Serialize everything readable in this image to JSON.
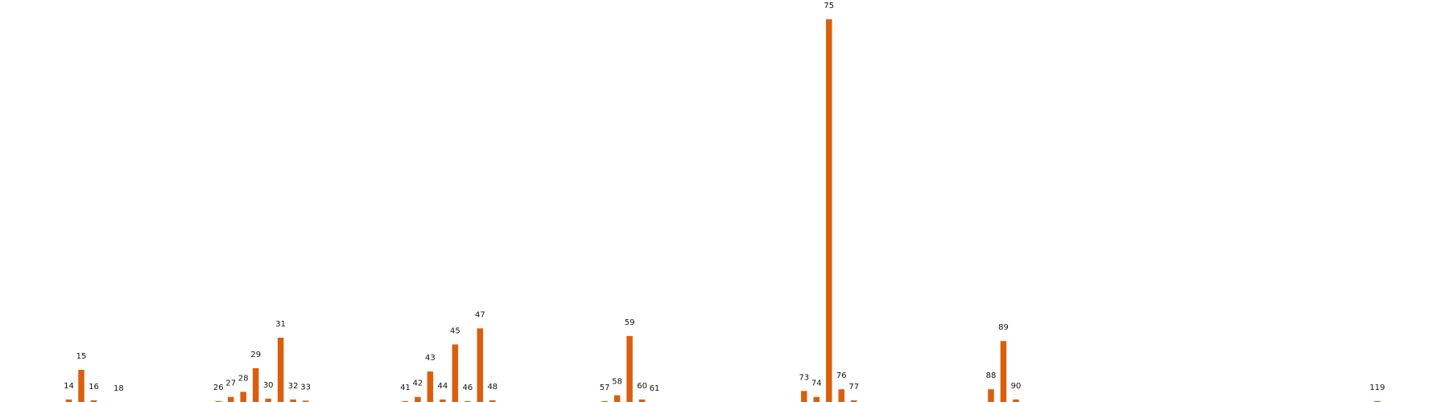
{
  "chart_data": {
    "type": "bar",
    "color": "#d95f0e",
    "background": "#ffffff",
    "grid": false,
    "axes_visible": false,
    "title": "",
    "xlabel": "",
    "ylabel": "",
    "categories": [
      "14",
      "15",
      "16",
      "18",
      "26",
      "27",
      "28",
      "29",
      "30",
      "31",
      "32",
      "33",
      "41",
      "42",
      "43",
      "44",
      "45",
      "46",
      "47",
      "48",
      "57",
      "58",
      "59",
      "60",
      "61",
      "73",
      "74",
      "75",
      "76",
      "77",
      "88",
      "89",
      "90",
      "119"
    ],
    "values": [
      1.5,
      19,
      1,
      0,
      0.5,
      3,
      6,
      20,
      2,
      38,
      1.5,
      0.8,
      0.5,
      3,
      18,
      1.5,
      34,
      0.5,
      43.5,
      1,
      0.5,
      4,
      39,
      1.5,
      0,
      6.5,
      3,
      226,
      7.5,
      1,
      7.5,
      36,
      1.5,
      0.5
    ],
    "ylim": [
      0,
      226
    ]
  }
}
